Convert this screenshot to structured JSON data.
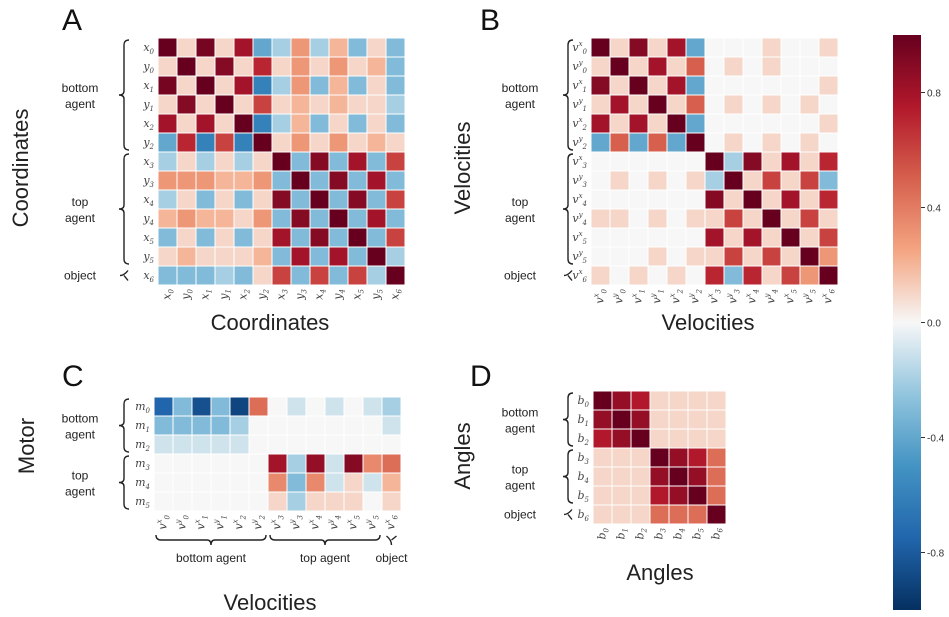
{
  "colors": {
    "neg": "#053061",
    "mid": "#f7f7f7",
    "pos": "#67001f"
  },
  "colorbar": {
    "range": [
      -1,
      1
    ],
    "ticks": [
      "0.8",
      "0.4",
      "0.0",
      "-0.4",
      "-0.8"
    ]
  },
  "chart_data": [
    {
      "panel": "A",
      "type": "heatmap",
      "xlabel": "Coordinates",
      "ylabel": "Coordinates",
      "rows": [
        "x0",
        "y0",
        "x1",
        "y1",
        "x2",
        "y2",
        "x3",
        "y3",
        "x4",
        "y4",
        "x5",
        "y5",
        "x6"
      ],
      "cols": [
        "x0",
        "y0",
        "x1",
        "y1",
        "x2",
        "y2",
        "x3",
        "y3",
        "x4",
        "y4",
        "x5",
        "y5",
        "x6"
      ],
      "row_groups": [
        {
          "label": "bottom agent",
          "start": 0,
          "end": 5
        },
        {
          "label": "top agent",
          "start": 6,
          "end": 11
        },
        {
          "label": "object",
          "start": 12,
          "end": 12
        }
      ],
      "values": [
        [
          1.0,
          0.1,
          0.95,
          0.1,
          0.8,
          -0.4,
          -0.2,
          0.3,
          -0.2,
          0.2,
          -0.3,
          0.1,
          -0.3
        ],
        [
          0.1,
          1.0,
          0.1,
          0.9,
          0.1,
          0.7,
          0.1,
          0.3,
          0.1,
          0.3,
          0.1,
          0.2,
          -0.3
        ],
        [
          0.95,
          0.1,
          1.0,
          0.1,
          0.8,
          -0.6,
          -0.2,
          0.3,
          -0.3,
          0.2,
          -0.3,
          0.1,
          -0.3
        ],
        [
          0.1,
          0.9,
          0.1,
          1.0,
          0.1,
          0.6,
          0.1,
          0.2,
          0.1,
          0.2,
          0.1,
          0.1,
          -0.2
        ],
        [
          0.8,
          0.1,
          0.8,
          0.1,
          1.0,
          -0.6,
          -0.2,
          0.2,
          -0.3,
          0.1,
          -0.3,
          0.1,
          -0.3
        ],
        [
          -0.4,
          0.7,
          -0.6,
          0.6,
          -0.6,
          1.0,
          0.1,
          0.3,
          0.1,
          0.3,
          0.1,
          0.2,
          0.1
        ],
        [
          -0.2,
          0.1,
          -0.2,
          0.1,
          -0.2,
          0.1,
          1.0,
          -0.3,
          0.9,
          -0.3,
          0.8,
          -0.3,
          0.6
        ],
        [
          0.3,
          0.3,
          0.3,
          0.2,
          0.2,
          0.3,
          -0.3,
          1.0,
          -0.3,
          0.9,
          -0.3,
          0.8,
          -0.3
        ],
        [
          -0.2,
          0.1,
          -0.3,
          0.1,
          -0.3,
          0.1,
          0.9,
          -0.3,
          1.0,
          -0.3,
          0.9,
          -0.3,
          0.6
        ],
        [
          0.2,
          0.3,
          0.2,
          0.2,
          0.1,
          0.3,
          -0.3,
          0.9,
          -0.3,
          1.0,
          -0.3,
          0.8,
          -0.3
        ],
        [
          -0.3,
          0.1,
          -0.3,
          0.1,
          -0.3,
          0.1,
          0.8,
          -0.3,
          0.9,
          -0.3,
          1.0,
          -0.3,
          0.6
        ],
        [
          0.1,
          0.2,
          0.1,
          0.1,
          0.1,
          0.2,
          -0.3,
          0.8,
          -0.3,
          0.8,
          -0.3,
          1.0,
          -0.2
        ],
        [
          -0.3,
          -0.3,
          -0.3,
          -0.2,
          -0.3,
          0.1,
          0.6,
          -0.3,
          0.6,
          -0.3,
          0.6,
          -0.2,
          1.0
        ]
      ]
    },
    {
      "panel": "B",
      "type": "heatmap",
      "xlabel": "Velocities",
      "ylabel": "Velocities",
      "rows": [
        "vx0",
        "vy0",
        "vx1",
        "vy1",
        "vx2",
        "vy2",
        "vx3",
        "vy3",
        "vx4",
        "vy4",
        "vx5",
        "vy5",
        "vx6"
      ],
      "cols": [
        "vx0",
        "vy0",
        "vx1",
        "vy1",
        "vx2",
        "vy2",
        "vx3",
        "vy3",
        "vx4",
        "vy4",
        "vx5",
        "vy5",
        "vx6"
      ],
      "row_groups": [
        {
          "label": "bottom agent",
          "start": 0,
          "end": 5
        },
        {
          "label": "top agent",
          "start": 6,
          "end": 11
        },
        {
          "label": "object",
          "start": 12,
          "end": 12
        }
      ],
      "values": [
        [
          1.0,
          0.1,
          0.9,
          0.1,
          0.8,
          -0.4,
          0.0,
          0.0,
          0.0,
          0.1,
          0.0,
          0.0,
          0.1
        ],
        [
          0.1,
          1.0,
          0.1,
          0.8,
          0.1,
          0.5,
          0.0,
          0.1,
          0.0,
          0.1,
          0.0,
          0.0,
          0.0
        ],
        [
          0.9,
          0.1,
          1.0,
          0.1,
          0.8,
          -0.4,
          0.0,
          0.0,
          0.0,
          0.0,
          0.0,
          0.0,
          0.1
        ],
        [
          0.1,
          0.8,
          0.1,
          1.0,
          0.1,
          0.5,
          0.0,
          0.1,
          0.0,
          0.1,
          0.0,
          0.1,
          0.0
        ],
        [
          0.8,
          0.1,
          0.8,
          0.1,
          1.0,
          -0.4,
          0.0,
          0.0,
          0.0,
          0.0,
          0.0,
          0.0,
          0.1
        ],
        [
          -0.4,
          0.5,
          -0.4,
          0.5,
          -0.4,
          1.0,
          0.0,
          0.1,
          0.0,
          0.1,
          0.0,
          0.1,
          0.0
        ],
        [
          0.0,
          0.0,
          0.0,
          0.0,
          0.0,
          0.0,
          1.0,
          -0.2,
          0.9,
          0.1,
          0.8,
          0.1,
          0.7
        ],
        [
          0.0,
          0.1,
          0.0,
          0.1,
          0.0,
          0.1,
          -0.2,
          1.0,
          0.1,
          0.6,
          0.1,
          0.6,
          -0.3
        ],
        [
          0.0,
          0.0,
          0.0,
          0.0,
          0.0,
          0.0,
          0.9,
          0.1,
          1.0,
          0.1,
          0.8,
          0.1,
          0.7
        ],
        [
          0.1,
          0.1,
          0.0,
          0.1,
          0.0,
          0.1,
          0.1,
          0.6,
          0.1,
          1.0,
          0.1,
          0.6,
          0.1
        ],
        [
          0.0,
          0.0,
          0.0,
          0.0,
          0.0,
          0.0,
          0.8,
          0.1,
          0.8,
          0.1,
          1.0,
          0.1,
          0.6
        ],
        [
          0.0,
          0.0,
          0.0,
          0.1,
          0.0,
          0.1,
          0.1,
          0.6,
          0.1,
          0.6,
          0.1,
          1.0,
          0.3
        ],
        [
          0.1,
          0.0,
          0.1,
          0.0,
          0.1,
          0.0,
          0.7,
          -0.3,
          0.7,
          0.1,
          0.6,
          0.3,
          1.0
        ]
      ]
    },
    {
      "panel": "C",
      "type": "heatmap",
      "xlabel": "Velocities",
      "ylabel": "Motor",
      "rows": [
        "m0",
        "m1",
        "m2",
        "m3",
        "m4",
        "m5"
      ],
      "cols": [
        "vx0",
        "vy0",
        "vx1",
        "vy1",
        "vx2",
        "vy2",
        "vx3",
        "vy3",
        "vx4",
        "vy4",
        "vx5",
        "vy5",
        "vx6"
      ],
      "row_groups": [
        {
          "label": "bottom agent",
          "start": 0,
          "end": 2
        },
        {
          "label": "top agent",
          "start": 3,
          "end": 5
        }
      ],
      "col_groups": [
        {
          "label": "bottom agent",
          "start": 0,
          "end": 5
        },
        {
          "label": "top agent",
          "start": 6,
          "end": 11
        },
        {
          "label": "object",
          "start": 12,
          "end": 12
        }
      ],
      "values": [
        [
          -0.75,
          -0.3,
          -0.85,
          -0.3,
          -0.9,
          0.45,
          0.0,
          -0.1,
          0.0,
          -0.1,
          0.0,
          -0.1,
          -0.2
        ],
        [
          -0.3,
          -0.3,
          -0.3,
          -0.3,
          -0.2,
          0.0,
          0.0,
          0.0,
          0.0,
          0.0,
          0.0,
          0.0,
          -0.1
        ],
        [
          -0.1,
          -0.1,
          -0.1,
          -0.1,
          -0.1,
          0.0,
          0.0,
          0.0,
          0.0,
          0.0,
          0.0,
          0.0,
          0.0
        ],
        [
          0.0,
          0.0,
          0.0,
          0.0,
          0.0,
          0.0,
          0.8,
          -0.2,
          0.85,
          -0.1,
          0.9,
          0.35,
          0.45
        ],
        [
          0.0,
          0.0,
          0.0,
          0.0,
          0.0,
          0.0,
          0.35,
          -0.3,
          0.35,
          -0.1,
          0.1,
          -0.1,
          0.2
        ],
        [
          0.0,
          0.0,
          0.0,
          0.0,
          0.0,
          0.0,
          0.1,
          -0.2,
          0.1,
          0.1,
          0.1,
          0.0,
          0.1
        ]
      ]
    },
    {
      "panel": "D",
      "type": "heatmap",
      "xlabel": "Angles",
      "ylabel": "Angles",
      "rows": [
        "b0",
        "b1",
        "b2",
        "b3",
        "b4",
        "b5",
        "b6"
      ],
      "cols": [
        "b0",
        "b1",
        "b2",
        "b3",
        "b4",
        "b5",
        "b6"
      ],
      "row_groups": [
        {
          "label": "bottom agent",
          "start": 0,
          "end": 2
        },
        {
          "label": "top agent",
          "start": 3,
          "end": 5
        },
        {
          "label": "object",
          "start": 6,
          "end": 6
        }
      ],
      "values": [
        [
          1.0,
          0.85,
          0.75,
          0.1,
          0.1,
          0.1,
          0.1
        ],
        [
          0.85,
          1.0,
          0.85,
          0.1,
          0.1,
          0.1,
          0.1
        ],
        [
          0.75,
          0.85,
          1.0,
          0.1,
          0.1,
          0.1,
          0.1
        ],
        [
          0.1,
          0.1,
          0.1,
          1.0,
          0.85,
          0.75,
          0.45
        ],
        [
          0.1,
          0.1,
          0.1,
          0.85,
          1.0,
          0.85,
          0.45
        ],
        [
          0.1,
          0.1,
          0.1,
          0.75,
          0.85,
          1.0,
          0.45
        ],
        [
          0.1,
          0.1,
          0.1,
          0.45,
          0.45,
          0.45,
          1.0
        ]
      ]
    }
  ]
}
